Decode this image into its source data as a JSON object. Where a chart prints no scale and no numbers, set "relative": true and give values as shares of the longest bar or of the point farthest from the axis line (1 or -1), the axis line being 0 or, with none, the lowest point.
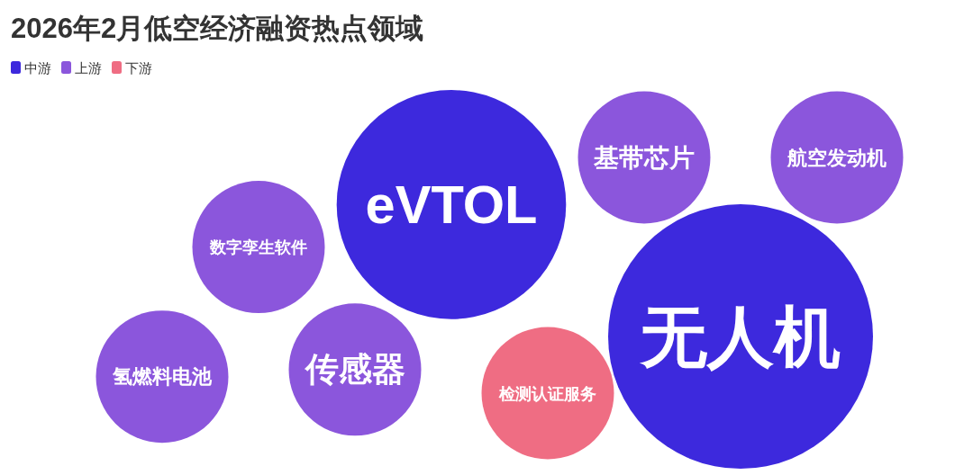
{
  "chart_data": {
    "type": "bubble",
    "title": "2026年2月低空经济融资热点领域",
    "legend": "top left",
    "relative": true,
    "categories": [
      "氢燃料电池",
      "数字孪生软件",
      "传感器",
      "eVTOL",
      "检测认证服务",
      "基带芯片",
      "无人机",
      "航空发动机"
    ],
    "series": [
      {
        "name": "中游",
        "color": "#3d29dd",
        "values": [
          null,
          null,
          null,
          0.8,
          null,
          null,
          0.24,
          null
        ],
        "sizes": [
          null,
          null,
          null,
          0.75,
          null,
          null,
          1,
          null
        ]
      },
      {
        "name": "上游",
        "color": "#8b56dc",
        "values": [
          0.07,
          0.62,
          0.1,
          null,
          null,
          1,
          null,
          1
        ],
        "sizes": [
          0.25,
          0.25,
          0.25,
          null,
          null,
          0.25,
          null,
          0.25
        ]
      },
      {
        "name": "下游",
        "color": "#ef6d83",
        "values": [
          null,
          null,
          null,
          null,
          0,
          null,
          null,
          null
        ],
        "sizes": [
          null,
          null,
          null,
          null,
          0.25,
          null,
          null,
          null
        ]
      }
    ]
  }
}
